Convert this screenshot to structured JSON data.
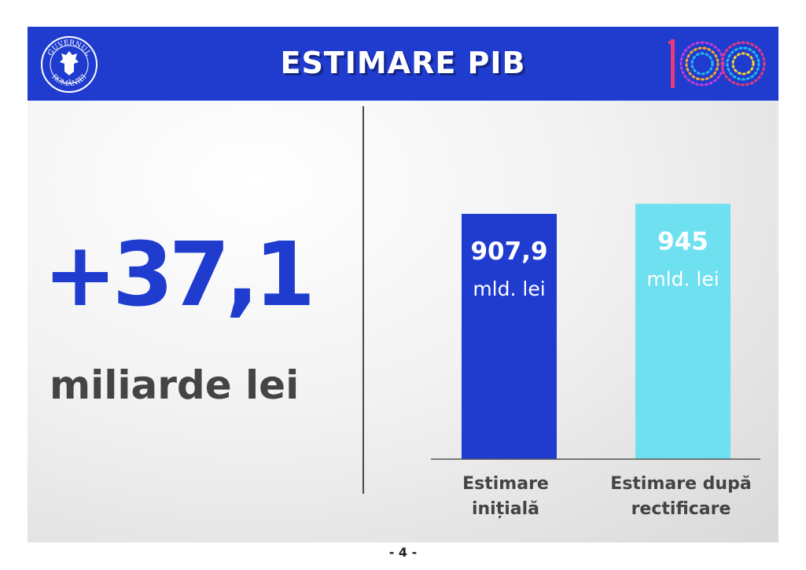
{
  "header": {
    "title": "ESTIMARE PIB",
    "emblem_text_top": "GUVERNUL",
    "emblem_text_bottom": "ROMÂNIEI",
    "centenary_logo": "100"
  },
  "highlight": {
    "value": "+37,1",
    "unit": "miliarde lei"
  },
  "footer": {
    "page": "- 4 -"
  },
  "colors": {
    "brand_blue": "#1f3ccf",
    "light_cyan": "#6ee0f0",
    "gray_text": "#444444"
  },
  "chart_data": {
    "type": "bar",
    "categories": [
      "Estimare\ninițială",
      "Estimare după\nrectificare"
    ],
    "category_lines": [
      [
        "Estimare",
        "inițială"
      ],
      [
        "Estimare după",
        "rectificare"
      ]
    ],
    "values": [
      907.9,
      945
    ],
    "value_labels": [
      "907,9",
      "945"
    ],
    "unit_labels": [
      "mld. lei",
      "mld. lei"
    ],
    "bar_colors": [
      "#1f3ccf",
      "#6ee0f0"
    ],
    "value_label_colors": [
      "#ffffff",
      "#ffffff"
    ],
    "axis_baseline": 0,
    "title": "",
    "xlabel": "",
    "ylabel": "",
    "grid": false
  }
}
